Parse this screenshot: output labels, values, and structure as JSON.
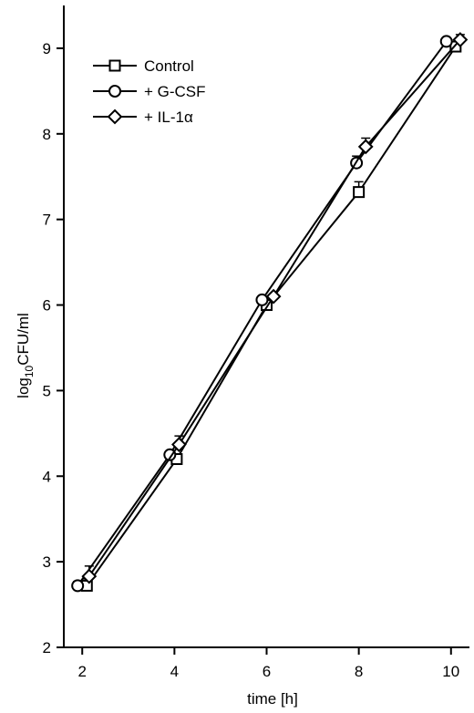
{
  "chart_data": {
    "type": "line",
    "xlabel": "time [h]",
    "ylabel_main": "log",
    "ylabel_sub": "10",
    "ylabel_rest": "CFU/ml",
    "xlim": [
      1.6,
      10.4
    ],
    "ylim": [
      2,
      9.5
    ],
    "xticks": [
      2,
      4,
      6,
      8,
      10
    ],
    "yticks": [
      2,
      3,
      4,
      5,
      6,
      7,
      8,
      9
    ],
    "grid": false,
    "legend_position": "top-left",
    "series": [
      {
        "name": "Control",
        "marker": "square",
        "points": [
          {
            "x": 2.1,
            "y": 2.72,
            "err": 0.08
          },
          {
            "x": 4.05,
            "y": 4.2,
            "err": 0.05
          },
          {
            "x": 6.0,
            "y": 6.0,
            "err": 0.04
          },
          {
            "x": 8.0,
            "y": 7.32,
            "err": 0.12
          },
          {
            "x": 10.1,
            "y": 9.02,
            "err": 0.06
          }
        ]
      },
      {
        "name": "+ G-CSF",
        "marker": "circle",
        "points": [
          {
            "x": 1.9,
            "y": 2.72,
            "err": 0.05
          },
          {
            "x": 3.9,
            "y": 4.25,
            "err": 0.04
          },
          {
            "x": 5.9,
            "y": 6.06,
            "err": 0.03
          },
          {
            "x": 7.95,
            "y": 7.66,
            "err": 0.08
          },
          {
            "x": 9.9,
            "y": 9.08,
            "err": 0.03
          }
        ]
      },
      {
        "name": "+ IL-1α",
        "marker": "diamond",
        "points": [
          {
            "x": 2.15,
            "y": 2.83,
            "err": 0.12
          },
          {
            "x": 4.1,
            "y": 4.37,
            "err": 0.1
          },
          {
            "x": 6.15,
            "y": 6.1,
            "err": 0.03
          },
          {
            "x": 8.15,
            "y": 7.85,
            "err": 0.1
          },
          {
            "x": 10.2,
            "y": 9.1,
            "err": 0.06
          }
        ]
      }
    ]
  }
}
